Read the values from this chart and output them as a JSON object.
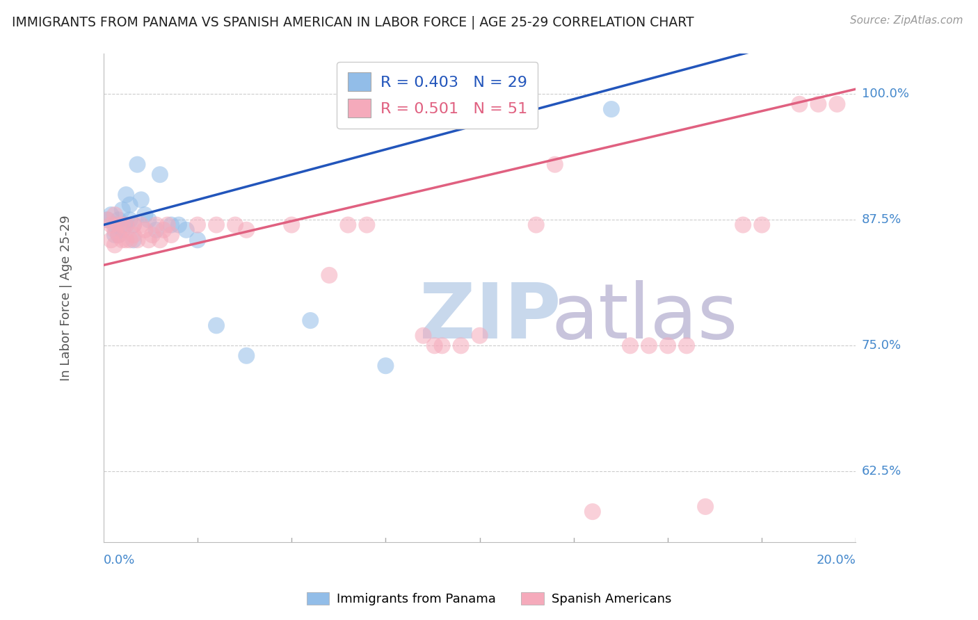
{
  "title": "IMMIGRANTS FROM PANAMA VS SPANISH AMERICAN IN LABOR FORCE | AGE 25-29 CORRELATION CHART",
  "source": "Source: ZipAtlas.com",
  "ylabel": "In Labor Force | Age 25-29",
  "xmin": 0.0,
  "xmax": 0.2,
  "ymin": 0.555,
  "ymax": 1.04,
  "panama_R": 0.403,
  "panama_N": 29,
  "spanish_R": 0.501,
  "spanish_N": 51,
  "panama_color": "#92bde8",
  "spanish_color": "#f5aabb",
  "panama_line_color": "#2255bb",
  "spanish_line_color": "#e06080",
  "legend_label_panama": "Immigrants from Panama",
  "legend_label_spanish": "Spanish Americans",
  "axis_label_color": "#555555",
  "tick_color": "#4488cc",
  "panama_x": [
    0.001,
    0.002,
    0.003,
    0.003,
    0.004,
    0.004,
    0.005,
    0.005,
    0.006,
    0.006,
    0.007,
    0.007,
    0.008,
    0.008,
    0.009,
    0.01,
    0.011,
    0.012,
    0.014,
    0.015,
    0.018,
    0.02,
    0.022,
    0.025,
    0.03,
    0.038,
    0.055,
    0.075,
    0.135
  ],
  "panama_y": [
    0.875,
    0.88,
    0.87,
    0.86,
    0.875,
    0.86,
    0.885,
    0.865,
    0.9,
    0.87,
    0.89,
    0.875,
    0.87,
    0.855,
    0.93,
    0.895,
    0.88,
    0.875,
    0.865,
    0.92,
    0.87,
    0.87,
    0.865,
    0.855,
    0.77,
    0.74,
    0.775,
    0.73,
    0.985
  ],
  "spanish_x": [
    0.001,
    0.002,
    0.002,
    0.003,
    0.003,
    0.003,
    0.004,
    0.004,
    0.005,
    0.005,
    0.006,
    0.006,
    0.007,
    0.008,
    0.008,
    0.009,
    0.01,
    0.011,
    0.012,
    0.013,
    0.014,
    0.015,
    0.016,
    0.017,
    0.018,
    0.025,
    0.03,
    0.035,
    0.038,
    0.05,
    0.06,
    0.065,
    0.07,
    0.085,
    0.088,
    0.09,
    0.095,
    0.1,
    0.115,
    0.12,
    0.13,
    0.14,
    0.145,
    0.15,
    0.155,
    0.16,
    0.17,
    0.175,
    0.185,
    0.19,
    0.195
  ],
  "spanish_y": [
    0.875,
    0.87,
    0.855,
    0.88,
    0.865,
    0.85,
    0.87,
    0.86,
    0.87,
    0.855,
    0.87,
    0.855,
    0.855,
    0.87,
    0.86,
    0.855,
    0.87,
    0.865,
    0.855,
    0.86,
    0.87,
    0.855,
    0.865,
    0.87,
    0.86,
    0.87,
    0.87,
    0.87,
    0.865,
    0.87,
    0.82,
    0.87,
    0.87,
    0.76,
    0.75,
    0.75,
    0.75,
    0.76,
    0.87,
    0.93,
    0.585,
    0.75,
    0.75,
    0.75,
    0.75,
    0.59,
    0.87,
    0.87,
    0.99,
    0.99,
    0.99
  ]
}
